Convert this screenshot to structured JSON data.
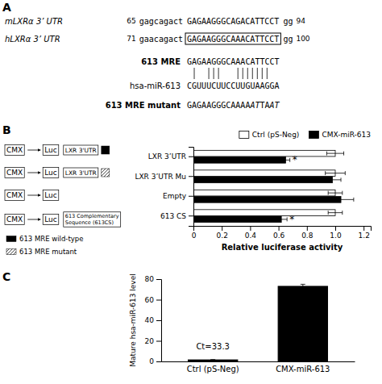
{
  "chart_data": [
    {
      "type": "sequence",
      "title": "A",
      "rows": [
        {
          "label": "mLXRα 3’ UTR",
          "pos_left": 65,
          "prefix": "gagcagact",
          "seq": "GAGAAGGGCAGACATTCCT",
          "suffix": "gg",
          "pos_right": 94,
          "boxed": false
        },
        {
          "label": "hLXRα 3’ UTR",
          "pos_left": 71,
          "prefix": "gaacagact",
          "seq": "GAGAAGGGCAAACATTCCT",
          "suffix": "gg",
          "pos_right": 100,
          "boxed": true
        },
        {
          "label": "613 MRE",
          "seq": "GAGAAGGGCAAACATTCCT",
          "bold": true
        },
        {
          "label": "hsa-miR-613",
          "seq": "CGUUUCUUCCUUGUAAGGA",
          "bold": false
        },
        {
          "label": "613 MRE mutant",
          "seq": "GAGAAGGGCAAAAATTAAT",
          "bold": true,
          "italic_idx": [
            13,
            14,
            17,
            18
          ]
        }
      ],
      "bar_chars_idx": [
        1,
        4,
        5,
        6,
        10,
        11,
        12,
        13,
        14,
        15,
        16
      ]
    },
    {
      "type": "diagram",
      "title": "B",
      "constructs": [
        {
          "promoter": "CMX",
          "reporter": "Luc",
          "insert": "LXR 3'UTR",
          "element": 0
        },
        {
          "promoter": "CMX",
          "reporter": "Luc",
          "insert": "LXR 3'UTR",
          "element": 1
        },
        {
          "promoter": "CMX",
          "reporter": "Luc"
        },
        {
          "promoter": "CMX",
          "reporter": "Luc",
          "insert": "613 Complementary\nSequence (613CS)"
        }
      ],
      "legend_items": [
        {
          "label": "613 MRE wild-type",
          "fill": "solid"
        },
        {
          "label": "613 MRE mutant",
          "fill": "hatch"
        }
      ]
    },
    {
      "type": "bar",
      "orientation": "horizontal",
      "categories": [
        "LXR 3’UTR",
        "LXR 3’UTR Mu",
        "Empty",
        "613 CS"
      ],
      "series": [
        {
          "name": "Ctrl (pS-Neg)",
          "color": "#ffffff",
          "values": [
            1.0,
            1.0,
            1.0,
            1.0
          ],
          "errors": [
            0.06,
            0.07,
            0.05,
            0.05
          ]
        },
        {
          "name": "CMX-miR-613",
          "color": "#000000",
          "values": [
            0.65,
            0.98,
            1.04,
            0.62
          ],
          "errors": [
            0.03,
            0.06,
            0.09,
            0.04
          ]
        }
      ],
      "xlabel": "Relative luciferase activity",
      "xlim": [
        0,
        1.25
      ],
      "xticks": [
        0,
        0.2,
        0.4,
        0.6,
        0.8,
        {
          "value": 1.0,
          "label": "1.0"
        },
        1.2
      ],
      "legend": "upper right",
      "annotations": [
        {
          "text": "*",
          "series": 1,
          "index": 0
        },
        {
          "text": "*",
          "series": 1,
          "index": 3
        }
      ]
    },
    {
      "type": "bar",
      "title": "C",
      "categories": [
        "Ctrl (pS-Neg)",
        "CMX-miR-613"
      ],
      "values": [
        1.5,
        73.0
      ],
      "errors": [
        0.3,
        2.0
      ],
      "color": "#000000",
      "ylabel": "Mature hsa-miR-613 level",
      "ylim": [
        0,
        80
      ],
      "yticks": [
        0,
        20,
        40,
        60,
        80
      ],
      "annotations": [
        {
          "text": "Ct=33.3",
          "x": 0,
          "y": 10
        }
      ]
    }
  ]
}
